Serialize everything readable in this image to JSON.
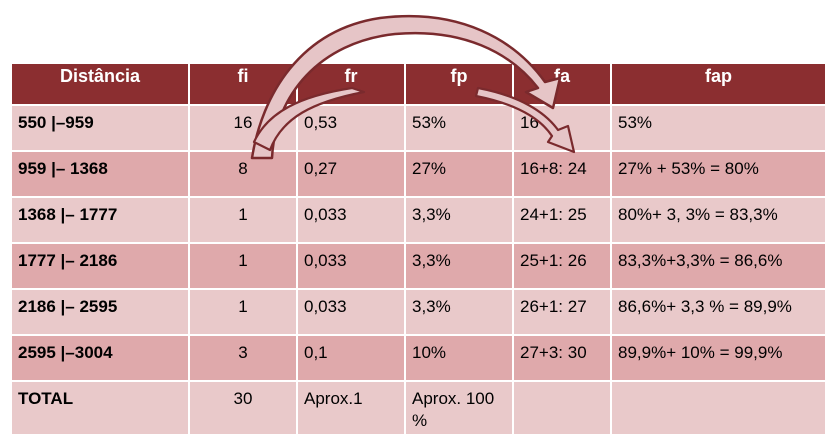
{
  "table": {
    "headers": [
      "Distância",
      "fi",
      "fr",
      "fp",
      "fa",
      "fap"
    ],
    "rows": [
      [
        "550 |–959",
        "16",
        "0,53",
        "53%",
        "16",
        "53%"
      ],
      [
        "959 |– 1368",
        "8",
        "0,27",
        "27%",
        "16+8: 24",
        "27% + 53% = 80%"
      ],
      [
        "1368 |– 1777",
        "1",
        "0,033",
        "3,3%",
        "24+1: 25",
        "80%+ 3, 3% = 83,3%"
      ],
      [
        "1777 |– 2186",
        "1",
        "0,033",
        "3,3%",
        "25+1: 26",
        "83,3%+3,3% = 86,6%"
      ],
      [
        "2186 |– 2595",
        "1",
        "0,033",
        "3,3%",
        "26+1: 27",
        "86,6%+ 3,3 % = 89,9%"
      ],
      [
        "2595 |–3004",
        "3",
        "0,1",
        "10%",
        "27+3: 30",
        "89,9%+ 10% = 99,9%"
      ],
      [
        "TOTAL",
        "30",
        "Aprox.1",
        "Aprox. 100 %",
        "",
        ""
      ]
    ]
  },
  "colors": {
    "header_bg": "#8b2e30",
    "row_light": "#e9c9ca",
    "row_dark": "#dfa9ab",
    "arrow_fill": "#e6c5c7",
    "arrow_stroke": "#7a2a2d"
  }
}
